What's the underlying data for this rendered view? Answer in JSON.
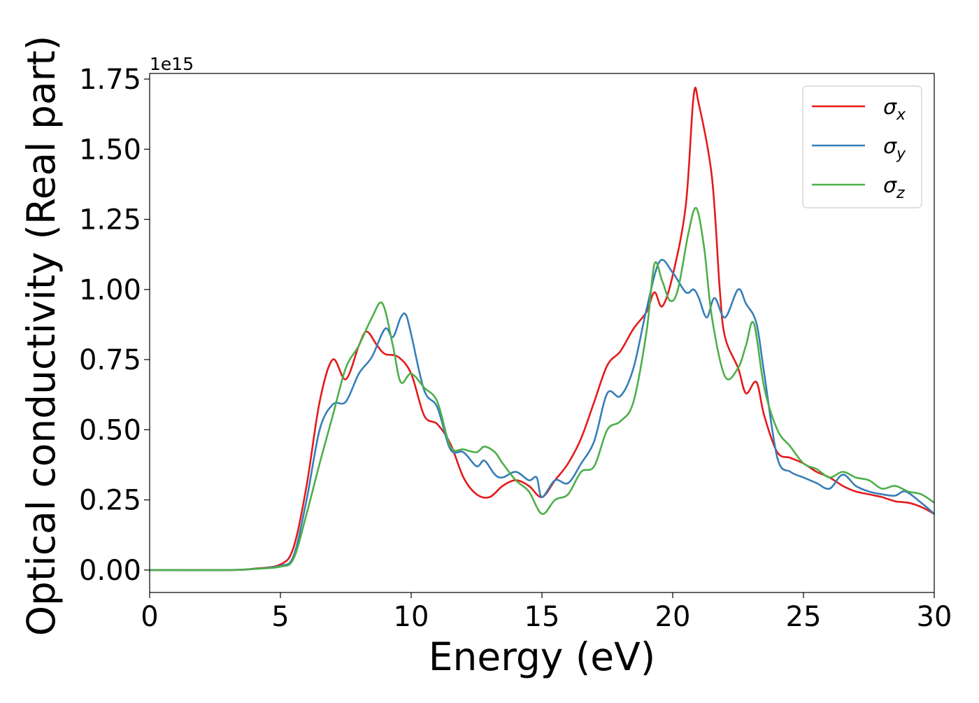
{
  "chart_data": {
    "type": "line",
    "title": "",
    "xlabel": "Energy (eV)",
    "ylabel": "Optical conductivity (Real part)",
    "y_offset_label": "1e15",
    "y_scale_factor": 1000000000000000.0,
    "xlim": [
      0,
      30
    ],
    "ylim": [
      -0.08,
      1.77
    ],
    "x_ticks": [
      0,
      5,
      10,
      15,
      20,
      25,
      30
    ],
    "y_ticks": [
      0.0,
      0.25,
      0.5,
      0.75,
      1.0,
      1.25,
      1.5,
      1.75
    ],
    "y_tick_labels": [
      "0.00",
      "0.25",
      "0.50",
      "0.75",
      "1.00",
      "1.25",
      "1.50",
      "1.75"
    ],
    "grid": false,
    "legend_position": "top-right",
    "series": [
      {
        "name": "σx",
        "base": "σ",
        "sub": "x",
        "color": "#e41a1c",
        "points": [
          [
            0,
            0.0
          ],
          [
            3,
            0.0
          ],
          [
            4,
            0.005
          ],
          [
            5,
            0.02
          ],
          [
            5.5,
            0.08
          ],
          [
            6,
            0.3
          ],
          [
            6.5,
            0.6
          ],
          [
            7,
            0.75
          ],
          [
            7.5,
            0.68
          ],
          [
            8,
            0.8
          ],
          [
            8.3,
            0.85
          ],
          [
            8.7,
            0.8
          ],
          [
            9,
            0.77
          ],
          [
            9.5,
            0.76
          ],
          [
            10,
            0.7
          ],
          [
            10.5,
            0.55
          ],
          [
            11,
            0.52
          ],
          [
            11.5,
            0.45
          ],
          [
            12,
            0.33
          ],
          [
            12.5,
            0.27
          ],
          [
            13,
            0.26
          ],
          [
            13.5,
            0.3
          ],
          [
            14,
            0.32
          ],
          [
            14.5,
            0.3
          ],
          [
            15,
            0.26
          ],
          [
            15.5,
            0.32
          ],
          [
            16,
            0.38
          ],
          [
            16.5,
            0.47
          ],
          [
            17,
            0.6
          ],
          [
            17.5,
            0.73
          ],
          [
            18,
            0.78
          ],
          [
            18.5,
            0.86
          ],
          [
            19,
            0.92
          ],
          [
            19.3,
            0.99
          ],
          [
            19.6,
            0.94
          ],
          [
            20,
            1.05
          ],
          [
            20.5,
            1.3
          ],
          [
            20.8,
            1.69
          ],
          [
            21,
            1.66
          ],
          [
            21.5,
            1.4
          ],
          [
            21.8,
            1.0
          ],
          [
            22,
            0.83
          ],
          [
            22.5,
            0.72
          ],
          [
            22.8,
            0.63
          ],
          [
            23.2,
            0.67
          ],
          [
            23.5,
            0.55
          ],
          [
            24,
            0.42
          ],
          [
            24.5,
            0.4
          ],
          [
            25,
            0.38
          ],
          [
            25.5,
            0.35
          ],
          [
            26,
            0.33
          ],
          [
            26.5,
            0.3
          ],
          [
            27,
            0.28
          ],
          [
            27.5,
            0.27
          ],
          [
            28,
            0.26
          ],
          [
            28.5,
            0.245
          ],
          [
            29,
            0.24
          ],
          [
            29.5,
            0.225
          ],
          [
            30,
            0.2
          ]
        ]
      },
      {
        "name": "σy",
        "base": "σ",
        "sub": "y",
        "color": "#377eb8",
        "points": [
          [
            0,
            0.0
          ],
          [
            3,
            0.0
          ],
          [
            4,
            0.004
          ],
          [
            5,
            0.015
          ],
          [
            5.5,
            0.05
          ],
          [
            6,
            0.25
          ],
          [
            6.5,
            0.5
          ],
          [
            7,
            0.59
          ],
          [
            7.5,
            0.6
          ],
          [
            8,
            0.7
          ],
          [
            8.5,
            0.76
          ],
          [
            9,
            0.86
          ],
          [
            9.3,
            0.83
          ],
          [
            9.6,
            0.9
          ],
          [
            9.8,
            0.91
          ],
          [
            10,
            0.84
          ],
          [
            10.5,
            0.64
          ],
          [
            11,
            0.58
          ],
          [
            11.5,
            0.43
          ],
          [
            12,
            0.42
          ],
          [
            12.5,
            0.37
          ],
          [
            12.8,
            0.39
          ],
          [
            13.2,
            0.34
          ],
          [
            13.5,
            0.33
          ],
          [
            14,
            0.35
          ],
          [
            14.5,
            0.32
          ],
          [
            14.8,
            0.33
          ],
          [
            15,
            0.26
          ],
          [
            15.5,
            0.32
          ],
          [
            16,
            0.31
          ],
          [
            16.5,
            0.38
          ],
          [
            17,
            0.46
          ],
          [
            17.5,
            0.63
          ],
          [
            18,
            0.62
          ],
          [
            18.5,
            0.72
          ],
          [
            19,
            0.93
          ],
          [
            19.5,
            1.1
          ],
          [
            20,
            1.06
          ],
          [
            20.5,
            0.99
          ],
          [
            20.8,
            1.0
          ],
          [
            21,
            0.97
          ],
          [
            21.3,
            0.9
          ],
          [
            21.6,
            0.97
          ],
          [
            22,
            0.9
          ],
          [
            22.5,
            1.0
          ],
          [
            22.8,
            0.95
          ],
          [
            23.2,
            0.88
          ],
          [
            23.5,
            0.7
          ],
          [
            24,
            0.4
          ],
          [
            24.5,
            0.35
          ],
          [
            25,
            0.33
          ],
          [
            25.5,
            0.31
          ],
          [
            26,
            0.29
          ],
          [
            26.5,
            0.34
          ],
          [
            27,
            0.3
          ],
          [
            27.5,
            0.28
          ],
          [
            28,
            0.27
          ],
          [
            28.5,
            0.265
          ],
          [
            28.9,
            0.28
          ],
          [
            29.5,
            0.24
          ],
          [
            30,
            0.2
          ]
        ]
      },
      {
        "name": "σz",
        "base": "σ",
        "sub": "z",
        "color": "#4daf4a",
        "points": [
          [
            0,
            0.0
          ],
          [
            3,
            0.0
          ],
          [
            4,
            0.004
          ],
          [
            5,
            0.012
          ],
          [
            5.5,
            0.04
          ],
          [
            6,
            0.2
          ],
          [
            6.5,
            0.38
          ],
          [
            7,
            0.55
          ],
          [
            7.5,
            0.72
          ],
          [
            8,
            0.8
          ],
          [
            8.5,
            0.9
          ],
          [
            8.9,
            0.95
          ],
          [
            9.3,
            0.8
          ],
          [
            9.6,
            0.67
          ],
          [
            10,
            0.7
          ],
          [
            10.5,
            0.65
          ],
          [
            11,
            0.6
          ],
          [
            11.5,
            0.44
          ],
          [
            12,
            0.43
          ],
          [
            12.5,
            0.42
          ],
          [
            12.8,
            0.44
          ],
          [
            13.2,
            0.42
          ],
          [
            13.5,
            0.38
          ],
          [
            14,
            0.32
          ],
          [
            14.5,
            0.28
          ],
          [
            15,
            0.2
          ],
          [
            15.5,
            0.25
          ],
          [
            16,
            0.27
          ],
          [
            16.5,
            0.35
          ],
          [
            17,
            0.37
          ],
          [
            17.5,
            0.5
          ],
          [
            18,
            0.53
          ],
          [
            18.5,
            0.6
          ],
          [
            19,
            0.85
          ],
          [
            19.3,
            1.09
          ],
          [
            19.6,
            1.03
          ],
          [
            19.9,
            0.96
          ],
          [
            20.2,
            1.0
          ],
          [
            20.6,
            1.2
          ],
          [
            20.9,
            1.29
          ],
          [
            21.2,
            1.15
          ],
          [
            21.5,
            0.9
          ],
          [
            22,
            0.69
          ],
          [
            22.5,
            0.72
          ],
          [
            22.8,
            0.8
          ],
          [
            23.1,
            0.88
          ],
          [
            23.5,
            0.65
          ],
          [
            24,
            0.5
          ],
          [
            24.5,
            0.44
          ],
          [
            25,
            0.38
          ],
          [
            25.5,
            0.36
          ],
          [
            26,
            0.33
          ],
          [
            26.5,
            0.35
          ],
          [
            27,
            0.33
          ],
          [
            27.5,
            0.32
          ],
          [
            28,
            0.29
          ],
          [
            28.5,
            0.3
          ],
          [
            29,
            0.28
          ],
          [
            29.5,
            0.27
          ],
          [
            30,
            0.24
          ]
        ]
      }
    ]
  }
}
